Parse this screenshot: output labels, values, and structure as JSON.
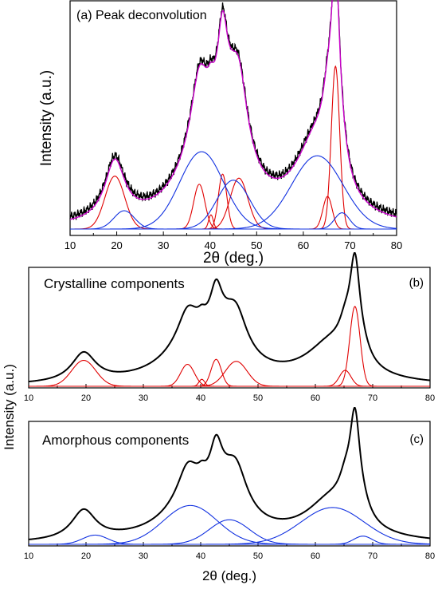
{
  "chart_data": [
    {
      "type": "line",
      "panel_label": "(a) Peak deconvolution",
      "title": "",
      "xlabel": "2θ (deg.)",
      "ylabel": "Intensity (a.u.)",
      "xlim": [
        10,
        80
      ],
      "xticks": [
        10,
        20,
        30,
        40,
        50,
        60,
        70,
        80
      ],
      "ylim": [
        0,
        1.0
      ],
      "y_ticks_shown": false,
      "legend": "none",
      "series": [
        {
          "role": "experimental",
          "color": "#000000",
          "peaks": [
            [
              19.6,
              0.29,
              2.6
            ],
            [
              37.7,
              0.29,
              2.1
            ],
            [
              38.8,
              0.38,
              6.0
            ],
            [
              40.2,
              0.07,
              0.8
            ],
            [
              42.7,
              0.42,
              1.3
            ],
            [
              44.9,
              0.26,
              4.0
            ],
            [
              46.2,
              0.34,
              2.3
            ],
            [
              62.8,
              0.38,
              5.5
            ],
            [
              65.2,
              0.2,
              1.3
            ],
            [
              66.9,
              0.94,
              1.1
            ],
            [
              68.3,
              0.08,
              1.6
            ]
          ],
          "noise": true
        },
        {
          "role": "fit",
          "color": "#CC00CC",
          "peaks": [
            [
              19.6,
              0.29,
              2.6
            ],
            [
              37.7,
              0.29,
              2.1
            ],
            [
              38.8,
              0.38,
              6.0
            ],
            [
              40.2,
              0.07,
              0.8
            ],
            [
              42.7,
              0.42,
              1.3
            ],
            [
              44.9,
              0.26,
              4.0
            ],
            [
              46.2,
              0.34,
              2.3
            ],
            [
              62.8,
              0.38,
              5.5
            ],
            [
              65.2,
              0.2,
              1.3
            ],
            [
              66.9,
              0.94,
              1.1
            ],
            [
              68.3,
              0.08,
              1.6
            ]
          ]
        },
        {
          "role": "crystalline",
          "color": "#E00000",
          "components": [
            [
              19.6,
              0.26,
              2.1
            ],
            [
              37.7,
              0.22,
              1.2
            ],
            [
              40.2,
              0.07,
              0.5
            ],
            [
              42.7,
              0.27,
              0.9
            ],
            [
              46.2,
              0.25,
              1.9
            ],
            [
              65.2,
              0.16,
              1.0
            ],
            [
              66.9,
              0.8,
              0.9
            ]
          ]
        },
        {
          "role": "amorphous",
          "color": "#1030E0",
          "components": [
            [
              21.6,
              0.09,
              2.2
            ],
            [
              38.2,
              0.38,
              4.7
            ],
            [
              45.0,
              0.24,
              3.5
            ],
            [
              63.0,
              0.36,
              5.5
            ],
            [
              68.3,
              0.08,
              1.6
            ]
          ]
        }
      ]
    },
    {
      "type": "line",
      "panel_label": "(b)",
      "annotation": "Crystalline components",
      "xlabel": "",
      "ylabel": "Intensity (a.u.)",
      "xlim": [
        10,
        80
      ],
      "xticks": [
        10,
        20,
        30,
        40,
        50,
        60,
        70,
        80
      ],
      "ylim": [
        0,
        1.0
      ],
      "y_ticks_shown": false,
      "legend": "none",
      "series": [
        {
          "role": "total",
          "color": "#000000",
          "peaks": [
            [
              19.6,
              0.29,
              2.6
            ],
            [
              37.7,
              0.29,
              2.1
            ],
            [
              38.8,
              0.38,
              6.0
            ],
            [
              40.2,
              0.07,
              0.8
            ],
            [
              42.7,
              0.42,
              1.3
            ],
            [
              44.9,
              0.26,
              4.0
            ],
            [
              46.2,
              0.34,
              2.3
            ],
            [
              62.8,
              0.38,
              5.5
            ],
            [
              65.2,
              0.2,
              1.3
            ],
            [
              66.9,
              0.94,
              1.1
            ],
            [
              68.3,
              0.08,
              1.6
            ]
          ]
        },
        {
          "role": "crystalline",
          "color": "#E00000",
          "components": [
            [
              19.6,
              0.26,
              2.1
            ],
            [
              37.7,
              0.22,
              1.2
            ],
            [
              40.2,
              0.07,
              0.5
            ],
            [
              42.7,
              0.27,
              0.9
            ],
            [
              46.2,
              0.25,
              1.9
            ],
            [
              65.2,
              0.16,
              1.0
            ],
            [
              66.9,
              0.8,
              0.9
            ]
          ]
        }
      ]
    },
    {
      "type": "line",
      "panel_label": "(c)",
      "annotation": "Amorphous components",
      "xlabel": "2θ (deg.)",
      "ylabel": "",
      "xlim": [
        10,
        80
      ],
      "xticks": [
        10,
        20,
        30,
        40,
        50,
        60,
        70,
        80
      ],
      "ylim": [
        0,
        1.0
      ],
      "y_ticks_shown": false,
      "legend": "none",
      "series": [
        {
          "role": "total",
          "color": "#000000",
          "peaks": [
            [
              19.6,
              0.29,
              2.6
            ],
            [
              37.7,
              0.29,
              2.1
            ],
            [
              38.8,
              0.38,
              6.0
            ],
            [
              40.2,
              0.07,
              0.8
            ],
            [
              42.7,
              0.42,
              1.3
            ],
            [
              44.9,
              0.26,
              4.0
            ],
            [
              46.2,
              0.34,
              2.3
            ],
            [
              62.8,
              0.38,
              5.5
            ],
            [
              65.2,
              0.2,
              1.3
            ],
            [
              66.9,
              0.94,
              1.1
            ],
            [
              68.3,
              0.08,
              1.6
            ]
          ]
        },
        {
          "role": "amorphous",
          "color": "#1030E0",
          "components": [
            [
              21.6,
              0.09,
              2.2
            ],
            [
              38.2,
              0.38,
              4.7
            ],
            [
              45.0,
              0.24,
              3.5
            ],
            [
              63.0,
              0.36,
              5.5
            ],
            [
              68.3,
              0.08,
              1.6
            ]
          ]
        }
      ]
    }
  ],
  "labels": {
    "panel_a": "(a) Peak deconvolution",
    "panel_b": "(b)",
    "panel_c": "(c)",
    "crystalline_title": "Crystalline components",
    "amorphous_title": "Amorphous components",
    "xlabel_top": "2θ (deg.)",
    "xlabel_bottom": "2θ (deg.)",
    "ylabel_top": "Intensity (a.u.)",
    "ylabel_shared": "Intensity (a.u.)"
  }
}
